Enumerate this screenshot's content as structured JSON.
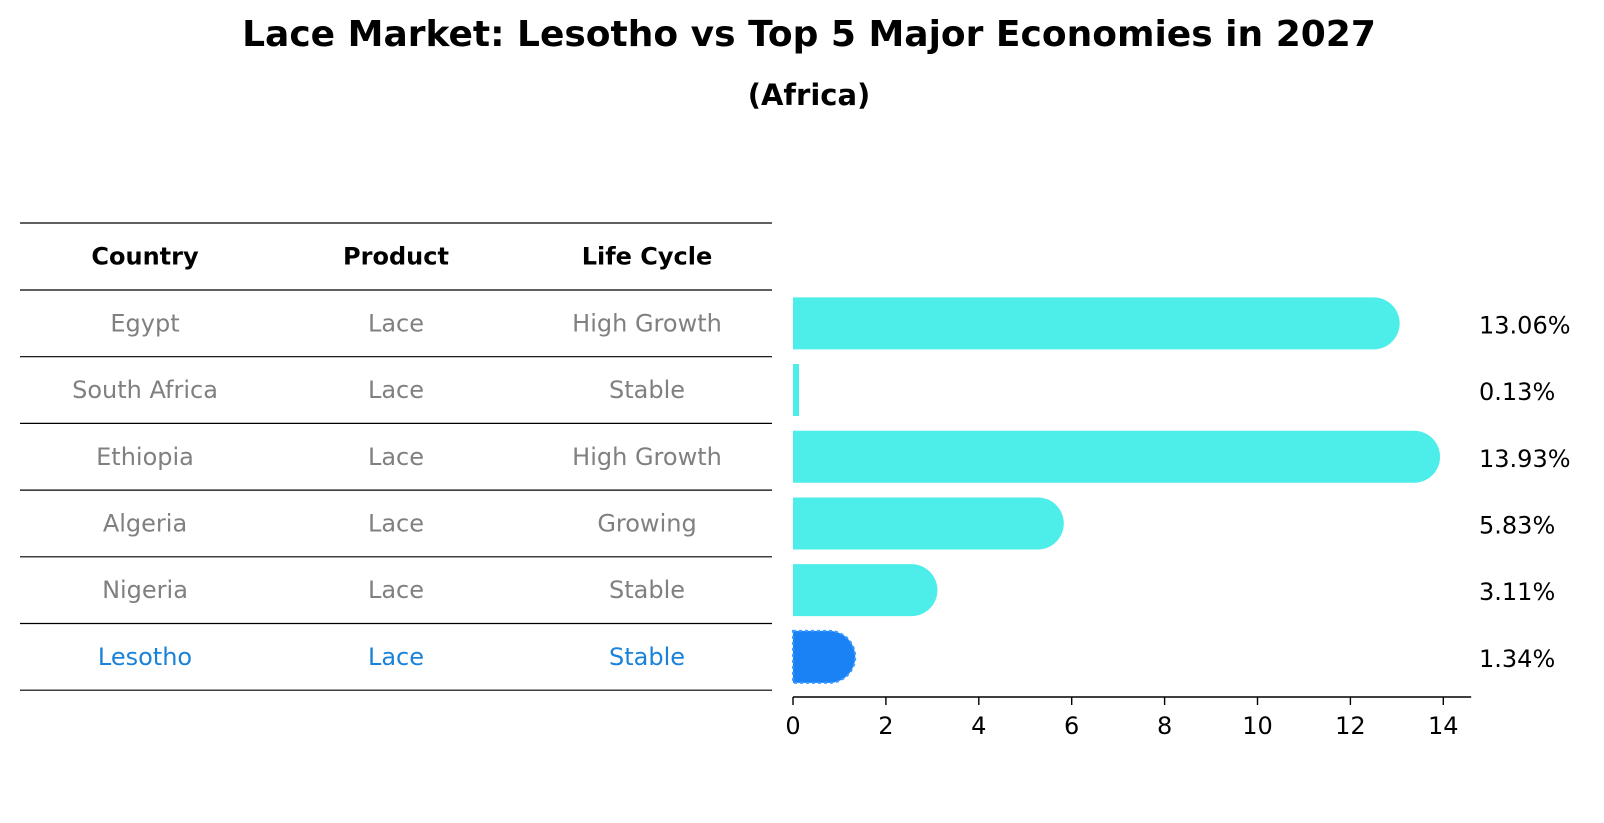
{
  "header": {
    "title": "Lace Market: Lesotho vs Top 5 Major Economies in 2027",
    "subtitle": "(Africa)"
  },
  "table": {
    "columns": [
      "Country",
      "Product",
      "Life Cycle"
    ],
    "rows": [
      [
        "Egypt",
        "Lace",
        "High Growth"
      ],
      [
        "South Africa",
        "Lace",
        "Stable"
      ],
      [
        "Ethiopia",
        "Lace",
        "High Growth"
      ],
      [
        "Algeria",
        "Lace",
        "Growing"
      ],
      [
        "Nigeria",
        "Lace",
        "Stable"
      ],
      [
        "Lesotho",
        "Lace",
        "Stable"
      ]
    ],
    "highlight_row": 5
  },
  "colors": {
    "bar": "#4deeea",
    "highlight_bar": "#1a82f5",
    "text_muted": "#808080",
    "highlight_text": "#1a82d8",
    "header_text": "#000000",
    "rule": "#000000"
  },
  "chart_data": {
    "type": "bar",
    "orientation": "horizontal",
    "title": "Lace Market: Lesotho vs Top 5 Major Economies in 2027",
    "subtitle": "(Africa)",
    "categories": [
      "Egypt",
      "South Africa",
      "Ethiopia",
      "Algeria",
      "Nigeria",
      "Lesotho"
    ],
    "values": [
      13.06,
      0.13,
      13.93,
      5.83,
      3.11,
      1.34
    ],
    "value_labels": [
      "13.06%",
      "0.13%",
      "13.93%",
      "5.83%",
      "3.11%",
      "1.34%"
    ],
    "highlight_category": "Lesotho",
    "xlim": [
      0,
      14.6
    ],
    "xticks": [
      0,
      2,
      4,
      6,
      8,
      10,
      12,
      14
    ],
    "xlabel": "",
    "ylabel": "",
    "grid": false
  }
}
